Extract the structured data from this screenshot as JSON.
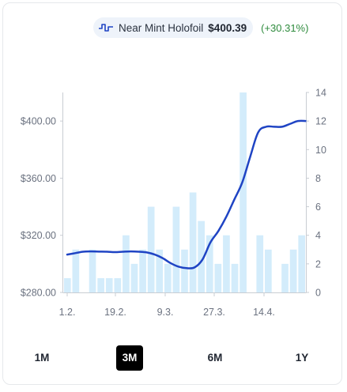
{
  "legend": {
    "icon": "stock-chart-icon",
    "name": "Near Mint Holofoil",
    "price": "$400.39",
    "change": "(+30.31%)"
  },
  "ranges": [
    {
      "label": "1M",
      "active": false
    },
    {
      "label": "3M",
      "active": true
    },
    {
      "label": "6M",
      "active": false
    },
    {
      "label": "1Y",
      "active": false
    }
  ],
  "colors": {
    "line": "#1f44c4",
    "bars": "#d3ecfb",
    "active_range": "#000000",
    "change_positive": "#2e8b3d"
  },
  "chart_data": {
    "type": "line",
    "x_tick_labels": [
      "1.2.",
      "19.2.",
      "9.3.",
      "27.3.",
      "14.4."
    ],
    "y_left": {
      "ticks": [
        "$280.00",
        "$320.00",
        "$360.00",
        "$400.00"
      ],
      "tick_values": [
        280,
        320,
        360,
        400
      ],
      "range": [
        280,
        420
      ]
    },
    "y_right": {
      "ticks": [
        "0",
        "2",
        "4",
        "6",
        "8",
        "10",
        "12",
        "14"
      ],
      "tick_values": [
        0,
        2,
        4,
        6,
        8,
        10,
        12,
        14
      ],
      "range": [
        0,
        14
      ]
    },
    "series": [
      {
        "axis": "left",
        "style": "line",
        "values": [
          306.5,
          307.5,
          308.5,
          308.7,
          308.6,
          308.5,
          308.2,
          308.5,
          308.7,
          308.5,
          308.0,
          306.5,
          304.0,
          300.5,
          298.0,
          297.0,
          297.5,
          303.0,
          315.0,
          323.0,
          333.0,
          345.0,
          357.0,
          375.0,
          392.0,
          396.0,
          396.0,
          396.0,
          398.0,
          400.0,
          400.0
        ]
      },
      {
        "axis": "right",
        "style": "bar",
        "values": [
          1,
          3,
          0,
          3,
          1,
          1,
          1,
          4,
          2,
          3,
          6,
          3,
          2,
          6,
          3,
          7,
          5,
          4,
          2,
          4,
          2,
          14,
          0,
          4,
          3,
          0,
          2,
          3,
          4
        ]
      }
    ],
    "grid": false,
    "legend_position": "top-right"
  }
}
